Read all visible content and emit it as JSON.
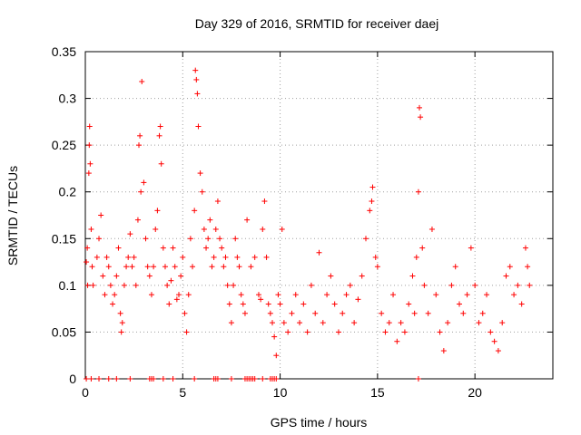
{
  "chart_data": {
    "type": "scatter",
    "title": "Day 329 of 2016, SRMTID for receiver daej",
    "xlabel": "GPS time / hours",
    "ylabel": "SRMTID / TECUs",
    "xlim": [
      0,
      24
    ],
    "ylim": [
      0,
      0.35
    ],
    "xticks": [
      0,
      5,
      10,
      15,
      20
    ],
    "xtick_labels": [
      "0",
      "5",
      "10",
      "15",
      "20"
    ],
    "yticks": [
      0,
      0.05,
      0.1,
      0.15,
      0.2,
      0.25,
      0.3,
      0.35
    ],
    "ytick_labels": [
      "0",
      "0.05",
      "0.1",
      "0.15",
      "0.2",
      "0.25",
      "0.3",
      "0.35"
    ],
    "grid": true,
    "marker": "+",
    "color": "#ff0000",
    "series": [
      {
        "name": "SRMTID",
        "points": [
          [
            0.05,
            0.125
          ],
          [
            0.1,
            0.14
          ],
          [
            0.12,
            0.1
          ],
          [
            0.18,
            0.22
          ],
          [
            0.2,
            0.25
          ],
          [
            0.22,
            0.27
          ],
          [
            0.25,
            0.23
          ],
          [
            0.3,
            0.16
          ],
          [
            0.35,
            0.12
          ],
          [
            0.4,
            0.1
          ],
          [
            0.6,
            0.13
          ],
          [
            0.7,
            0.15
          ],
          [
            0.8,
            0.175
          ],
          [
            0.9,
            0.11
          ],
          [
            1.0,
            0.09
          ],
          [
            1.1,
            0.13
          ],
          [
            1.2,
            0.12
          ],
          [
            1.3,
            0.1
          ],
          [
            1.4,
            0.08
          ],
          [
            1.5,
            0.09
          ],
          [
            1.6,
            0.11
          ],
          [
            1.7,
            0.14
          ],
          [
            1.8,
            0.07
          ],
          [
            1.85,
            0.05
          ],
          [
            1.9,
            0.06
          ],
          [
            2.0,
            0.1
          ],
          [
            2.1,
            0.12
          ],
          [
            2.2,
            0.13
          ],
          [
            2.3,
            0.155
          ],
          [
            2.4,
            0.12
          ],
          [
            2.5,
            0.13
          ],
          [
            2.6,
            0.1
          ],
          [
            2.7,
            0.17
          ],
          [
            2.75,
            0.25
          ],
          [
            2.8,
            0.26
          ],
          [
            2.85,
            0.2
          ],
          [
            2.9,
            0.318
          ],
          [
            3.0,
            0.21
          ],
          [
            3.1,
            0.15
          ],
          [
            3.2,
            0.12
          ],
          [
            3.3,
            0.11
          ],
          [
            3.4,
            0.09
          ],
          [
            3.5,
            0.12
          ],
          [
            3.6,
            0.16
          ],
          [
            3.7,
            0.18
          ],
          [
            3.8,
            0.26
          ],
          [
            3.85,
            0.27
          ],
          [
            3.9,
            0.23
          ],
          [
            4.0,
            0.14
          ],
          [
            4.1,
            0.12
          ],
          [
            4.2,
            0.1
          ],
          [
            4.3,
            0.08
          ],
          [
            4.4,
            0.105
          ],
          [
            4.5,
            0.14
          ],
          [
            4.6,
            0.12
          ],
          [
            4.7,
            0.085
          ],
          [
            4.8,
            0.09
          ],
          [
            4.9,
            0.11
          ],
          [
            5.0,
            0.13
          ],
          [
            5.1,
            0.07
          ],
          [
            5.2,
            0.05
          ],
          [
            5.3,
            0.09
          ],
          [
            5.4,
            0.15
          ],
          [
            5.5,
            0.12
          ],
          [
            5.6,
            0.18
          ],
          [
            5.65,
            0.33
          ],
          [
            5.7,
            0.32
          ],
          [
            5.75,
            0.305
          ],
          [
            5.8,
            0.27
          ],
          [
            5.9,
            0.22
          ],
          [
            6.0,
            0.2
          ],
          [
            6.1,
            0.16
          ],
          [
            6.2,
            0.14
          ],
          [
            6.3,
            0.15
          ],
          [
            6.4,
            0.17
          ],
          [
            6.5,
            0.12
          ],
          [
            6.6,
            0.13
          ],
          [
            6.7,
            0.16
          ],
          [
            6.8,
            0.19
          ],
          [
            6.9,
            0.15
          ],
          [
            7.0,
            0.14
          ],
          [
            7.1,
            0.12
          ],
          [
            7.2,
            0.13
          ],
          [
            7.3,
            0.1
          ],
          [
            7.4,
            0.08
          ],
          [
            7.5,
            0.06
          ],
          [
            7.6,
            0.1
          ],
          [
            7.7,
            0.15
          ],
          [
            7.8,
            0.13
          ],
          [
            7.9,
            0.12
          ],
          [
            8.0,
            0.09
          ],
          [
            8.1,
            0.08
          ],
          [
            8.2,
            0.07
          ],
          [
            8.3,
            0.17
          ],
          [
            8.5,
            0.12
          ],
          [
            8.7,
            0.13
          ],
          [
            8.9,
            0.09
          ],
          [
            9.0,
            0.085
          ],
          [
            9.1,
            0.16
          ],
          [
            9.2,
            0.19
          ],
          [
            9.3,
            0.13
          ],
          [
            9.4,
            0.08
          ],
          [
            9.5,
            0.07
          ],
          [
            9.6,
            0.06
          ],
          [
            9.7,
            0.045
          ],
          [
            9.8,
            0.025
          ],
          [
            9.9,
            0.09
          ],
          [
            10.0,
            0.08
          ],
          [
            10.1,
            0.16
          ],
          [
            10.2,
            0.06
          ],
          [
            10.4,
            0.05
          ],
          [
            10.6,
            0.07
          ],
          [
            10.8,
            0.09
          ],
          [
            11.0,
            0.06
          ],
          [
            11.2,
            0.08
          ],
          [
            11.4,
            0.05
          ],
          [
            11.6,
            0.1
          ],
          [
            11.8,
            0.07
          ],
          [
            12.0,
            0.135
          ],
          [
            12.2,
            0.06
          ],
          [
            12.4,
            0.09
          ],
          [
            12.6,
            0.11
          ],
          [
            12.8,
            0.08
          ],
          [
            13.0,
            0.05
          ],
          [
            13.2,
            0.07
          ],
          [
            13.4,
            0.09
          ],
          [
            13.6,
            0.1
          ],
          [
            13.8,
            0.06
          ],
          [
            14.0,
            0.085
          ],
          [
            14.2,
            0.11
          ],
          [
            14.4,
            0.15
          ],
          [
            14.6,
            0.18
          ],
          [
            14.7,
            0.19
          ],
          [
            14.75,
            0.205
          ],
          [
            14.9,
            0.13
          ],
          [
            15.0,
            0.12
          ],
          [
            15.2,
            0.07
          ],
          [
            15.4,
            0.05
          ],
          [
            15.6,
            0.06
          ],
          [
            15.8,
            0.09
          ],
          [
            16.0,
            0.04
          ],
          [
            16.2,
            0.06
          ],
          [
            16.4,
            0.05
          ],
          [
            16.6,
            0.08
          ],
          [
            16.8,
            0.11
          ],
          [
            16.9,
            0.07
          ],
          [
            17.0,
            0.13
          ],
          [
            17.1,
            0.2
          ],
          [
            17.15,
            0.29
          ],
          [
            17.2,
            0.28
          ],
          [
            17.3,
            0.14
          ],
          [
            17.4,
            0.1
          ],
          [
            17.6,
            0.07
          ],
          [
            17.8,
            0.16
          ],
          [
            18.0,
            0.09
          ],
          [
            18.2,
            0.05
          ],
          [
            18.4,
            0.03
          ],
          [
            18.6,
            0.06
          ],
          [
            18.8,
            0.1
          ],
          [
            19.0,
            0.12
          ],
          [
            19.2,
            0.08
          ],
          [
            19.4,
            0.07
          ],
          [
            19.6,
            0.09
          ],
          [
            19.8,
            0.14
          ],
          [
            20.0,
            0.1
          ],
          [
            20.2,
            0.06
          ],
          [
            20.4,
            0.07
          ],
          [
            20.6,
            0.09
          ],
          [
            20.8,
            0.05
          ],
          [
            21.0,
            0.04
          ],
          [
            21.2,
            0.03
          ],
          [
            21.4,
            0.06
          ],
          [
            21.6,
            0.11
          ],
          [
            21.8,
            0.12
          ],
          [
            22.0,
            0.09
          ],
          [
            22.2,
            0.1
          ],
          [
            22.4,
            0.08
          ],
          [
            22.6,
            0.14
          ],
          [
            22.7,
            0.12
          ],
          [
            22.8,
            0.1
          ],
          [
            0.05,
            0
          ],
          [
            0.3,
            0
          ],
          [
            0.7,
            0
          ],
          [
            1.2,
            0
          ],
          [
            1.6,
            0
          ],
          [
            2.3,
            0
          ],
          [
            3.3,
            0
          ],
          [
            3.4,
            0
          ],
          [
            3.5,
            0
          ],
          [
            4.0,
            0
          ],
          [
            4.5,
            0
          ],
          [
            5.6,
            0
          ],
          [
            6.6,
            0
          ],
          [
            6.7,
            0
          ],
          [
            6.8,
            0
          ],
          [
            7.5,
            0
          ],
          [
            8.2,
            0
          ],
          [
            8.3,
            0
          ],
          [
            8.4,
            0
          ],
          [
            8.5,
            0
          ],
          [
            8.6,
            0
          ],
          [
            8.7,
            0
          ],
          [
            9.1,
            0
          ],
          [
            9.5,
            0
          ],
          [
            9.6,
            0
          ],
          [
            9.7,
            0
          ],
          [
            9.8,
            0
          ],
          [
            17.1,
            0
          ]
        ]
      }
    ]
  }
}
